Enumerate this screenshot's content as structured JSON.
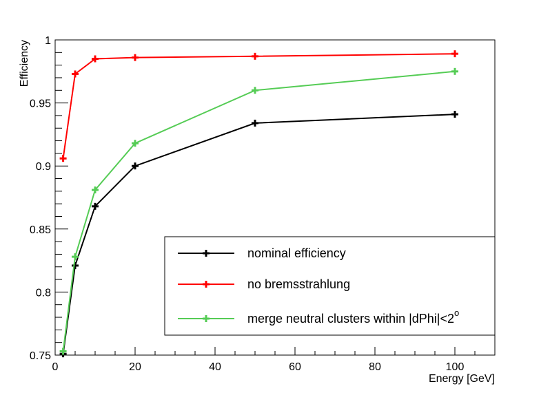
{
  "chart_data": {
    "type": "line",
    "xlabel": "Energy [GeV]",
    "ylabel": "Efficiency",
    "xlim": [
      0,
      110
    ],
    "ylim": [
      0.75,
      1.0
    ],
    "x_ticks": [
      0,
      20,
      40,
      60,
      80,
      100
    ],
    "y_ticks": [
      0.75,
      0.8,
      0.85,
      0.9,
      0.95,
      1.0
    ],
    "x_tick_labels": [
      "0",
      "20",
      "40",
      "60",
      "80",
      "100"
    ],
    "y_tick_labels": [
      "0.75",
      "0.8",
      "0.85",
      "0.9",
      "0.95",
      "1"
    ],
    "grid": false,
    "legend_position": "bottom-right",
    "series": [
      {
        "name": "nominal efficiency",
        "color": "#000000",
        "x": [
          2,
          5,
          10,
          20,
          50,
          100
        ],
        "y": [
          0.751,
          0.821,
          0.868,
          0.9,
          0.934,
          0.941
        ]
      },
      {
        "name": "no bremsstrahlung",
        "color": "#ff0000",
        "x": [
          2,
          5,
          10,
          20,
          50,
          100
        ],
        "y": [
          0.906,
          0.973,
          0.985,
          0.986,
          0.987,
          0.989
        ]
      },
      {
        "name": "merge neutral clusters within |dPhi|<2",
        "name_superscript": "o",
        "color": "#55cc55",
        "x": [
          2,
          5,
          10,
          20,
          50,
          100
        ],
        "y": [
          0.753,
          0.828,
          0.881,
          0.918,
          0.96,
          0.975
        ]
      }
    ]
  }
}
